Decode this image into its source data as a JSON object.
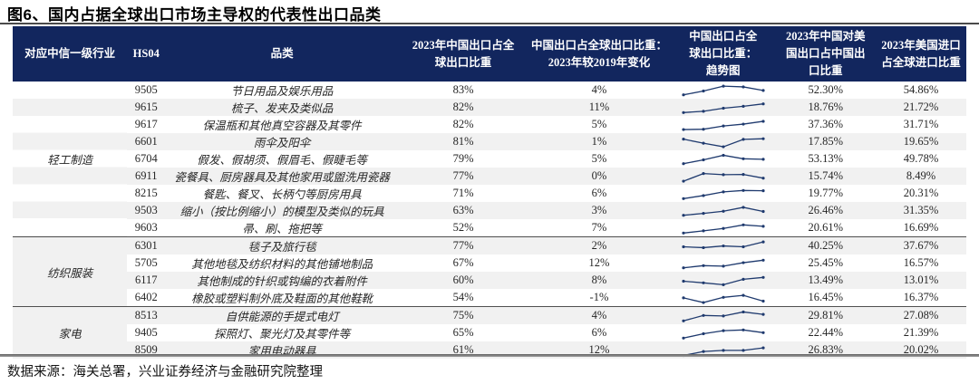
{
  "title": "图6、国内占据全球出口市场主导权的代表性出口品类",
  "footer": {
    "source": "数据来源：海关总署，兴业证券经济与金融研究院整理"
  },
  "colors": {
    "header_bg": "#12265e",
    "stripe": "#f1f1f1",
    "sparkline": "#1f3a6e",
    "rule": "#4a4a4a"
  },
  "table": {
    "columns": [
      {
        "label": "对应中信一级行业"
      },
      {
        "label": "HS04"
      },
      {
        "label": "品类"
      },
      {
        "label": "2023年中国出口占全\n球出口比重"
      },
      {
        "label": "中国出口占全球出口比重：\n2023年较2019年变化"
      },
      {
        "label": "中国出口占全\n球出口比重：\n趋势图"
      },
      {
        "label": "2023年中国对美\n国出口占中国出\n口比重"
      },
      {
        "label": "2023年美国进口\n占全球进口比重"
      }
    ],
    "groups": [
      {
        "industry": "轻工制造",
        "rows": [
          {
            "hs04": "9505",
            "category": "节日用品及娱乐用品",
            "share_2023": "83%",
            "change_vs_2019": "4%",
            "trend": [
              0.15,
              0.5,
              0.95,
              0.88,
              0.55
            ],
            "us_export_share": "52.30%",
            "us_import_share": "54.86%"
          },
          {
            "hs04": "9615",
            "category": "梳子、发夹及类似品",
            "share_2023": "82%",
            "change_vs_2019": "11%",
            "trend": [
              0.1,
              0.22,
              0.5,
              0.68,
              0.9
            ],
            "us_export_share": "18.76%",
            "us_import_share": "21.72%"
          },
          {
            "hs04": "9617",
            "category": "保温瓶和其他真空容器及其零件",
            "share_2023": "82%",
            "change_vs_2019": "5%",
            "trend": [
              0.12,
              0.15,
              0.45,
              0.62,
              0.88
            ],
            "us_export_share": "37.36%",
            "us_import_share": "31.71%"
          },
          {
            "hs04": "6601",
            "category": "雨伞及阳伞",
            "share_2023": "81%",
            "change_vs_2019": "1%",
            "trend": [
              0.82,
              0.45,
              0.12,
              0.8,
              0.86
            ],
            "us_export_share": "17.85%",
            "us_import_share": "19.65%"
          },
          {
            "hs04": "6704",
            "category": "假发、假胡须、假眉毛、假睫毛等",
            "share_2023": "79%",
            "change_vs_2019": "5%",
            "trend": [
              0.15,
              0.5,
              0.92,
              0.6,
              0.55
            ],
            "us_export_share": "53.13%",
            "us_import_share": "49.78%"
          },
          {
            "hs04": "6911",
            "category": "瓷餐具、厨房器具及其他家用或盥洗用瓷器",
            "share_2023": "77%",
            "change_vs_2019": "0%",
            "trend": [
              0.12,
              0.82,
              0.72,
              0.74,
              0.4
            ],
            "us_export_share": "15.74%",
            "us_import_share": "8.49%"
          },
          {
            "hs04": "8215",
            "category": "餐匙、餐叉、长柄勺等厨房用具",
            "share_2023": "71%",
            "change_vs_2019": "6%",
            "trend": [
              0.1,
              0.38,
              0.72,
              0.85,
              0.82
            ],
            "us_export_share": "19.77%",
            "us_import_share": "20.31%"
          },
          {
            "hs04": "9503",
            "category": "缩小（按比例缩小）的模型及类似的玩具",
            "share_2023": "63%",
            "change_vs_2019": "3%",
            "trend": [
              0.15,
              0.32,
              0.52,
              0.88,
              0.5
            ],
            "us_export_share": "26.46%",
            "us_import_share": "31.35%"
          },
          {
            "hs04": "9603",
            "category": "帚、刷、拖把等",
            "share_2023": "52%",
            "change_vs_2019": "7%",
            "trend": [
              0.1,
              0.3,
              0.52,
              0.85,
              0.72
            ],
            "us_export_share": "20.61%",
            "us_import_share": "16.69%"
          }
        ]
      },
      {
        "industry": "纺织服装",
        "rows": [
          {
            "hs04": "6301",
            "category": "毯子及旅行毯",
            "share_2023": "77%",
            "change_vs_2019": "2%",
            "trend": [
              0.5,
              0.42,
              0.58,
              0.5,
              0.95
            ],
            "us_export_share": "40.25%",
            "us_import_share": "37.67%"
          },
          {
            "hs04": "5705",
            "category": "其他地毯及纺织材料的其他铺地制品",
            "share_2023": "67%",
            "change_vs_2019": "12%",
            "trend": [
              0.15,
              0.35,
              0.3,
              0.62,
              0.85
            ],
            "us_export_share": "25.45%",
            "us_import_share": "16.57%"
          },
          {
            "hs04": "6117",
            "category": "其他制成的针织或钩编的衣着附件",
            "share_2023": "60%",
            "change_vs_2019": "8%",
            "trend": [
              0.5,
              0.35,
              0.18,
              0.68,
              0.85
            ],
            "us_export_share": "13.49%",
            "us_import_share": "13.01%"
          },
          {
            "hs04": "6402",
            "category": "橡胶或塑料制外底及鞋面的其他鞋靴",
            "share_2023": "54%",
            "change_vs_2019": "-1%",
            "trend": [
              0.55,
              0.12,
              0.6,
              0.78,
              0.25
            ],
            "us_export_share": "16.45%",
            "us_import_share": "16.37%"
          }
        ]
      },
      {
        "industry": "家电",
        "rows": [
          {
            "hs04": "8513",
            "category": "自供能源的手提式电灯",
            "share_2023": "75%",
            "change_vs_2019": "4%",
            "trend": [
              0.1,
              0.6,
              0.55,
              0.92,
              0.7
            ],
            "us_export_share": "29.81%",
            "us_import_share": "27.08%"
          },
          {
            "hs04": "9405",
            "category": "探照灯、聚光灯及其零件等",
            "share_2023": "65%",
            "change_vs_2019": "6%",
            "trend": [
              0.1,
              0.5,
              0.78,
              0.85,
              0.6
            ],
            "us_export_share": "22.44%",
            "us_import_share": "21.39%"
          },
          {
            "hs04": "8509",
            "category": "家用电动器具",
            "share_2023": "61%",
            "change_vs_2019": "12%",
            "trend": [
              0.08,
              0.45,
              0.55,
              0.55,
              0.78
            ],
            "us_export_share": "26.83%",
            "us_import_share": "20.02%"
          }
        ]
      }
    ]
  }
}
